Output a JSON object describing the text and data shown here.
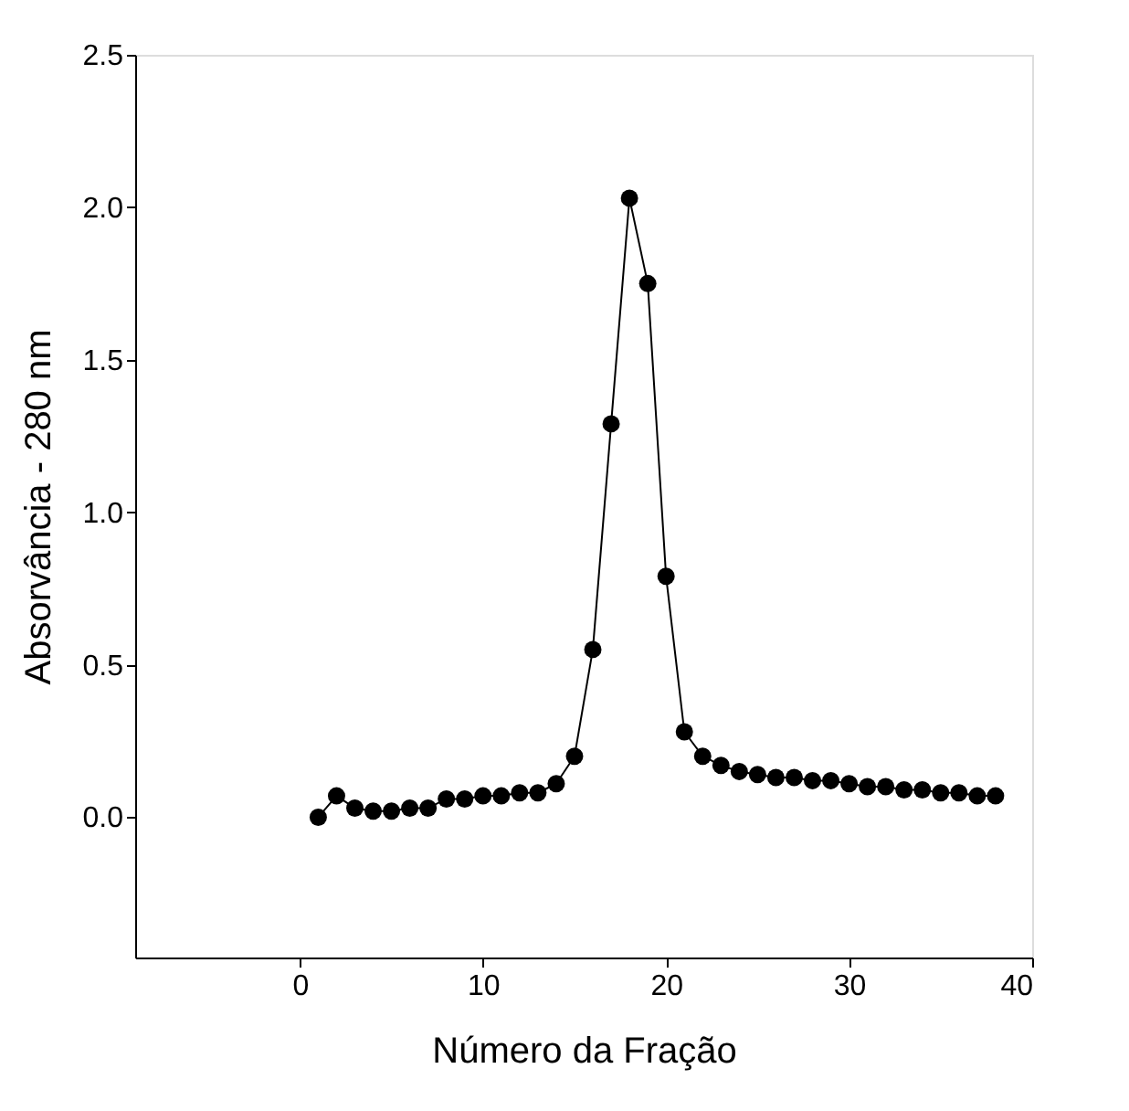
{
  "chart_data": {
    "type": "line",
    "xlabel": "Número da Fração",
    "ylabel": "Absorvância - 280 nm",
    "x": [
      1,
      2,
      3,
      4,
      5,
      6,
      7,
      8,
      9,
      10,
      11,
      12,
      13,
      14,
      15,
      16,
      17,
      18,
      19,
      20,
      21,
      22,
      23,
      24,
      25,
      26,
      27,
      28,
      29,
      30,
      31,
      32,
      33,
      34,
      35,
      36,
      37,
      38
    ],
    "series": [
      {
        "color": "#000000",
        "values": [
          0.0,
          0.07,
          0.03,
          0.02,
          0.02,
          0.03,
          0.03,
          0.06,
          0.06,
          0.07,
          0.07,
          0.08,
          0.08,
          0.11,
          0.2,
          0.55,
          1.29,
          2.03,
          1.75,
          0.79,
          0.28,
          0.2,
          0.17,
          0.15,
          0.14,
          0.13,
          0.13,
          0.12,
          0.12,
          0.11,
          0.1,
          0.1,
          0.09,
          0.09,
          0.08,
          0.08,
          0.07,
          0.07
        ]
      }
    ],
    "xlim": [
      -9,
      40
    ],
    "xticks": [
      0,
      10,
      20,
      30,
      40
    ],
    "ylim": [
      -0.46,
      2.5
    ],
    "yticks": [
      {
        "value": 0,
        "label": "0.0"
      },
      {
        "value": 0.5,
        "label": "0.5"
      },
      {
        "value": 1,
        "label": "1.0"
      },
      {
        "value": 1.5,
        "label": "1.5"
      },
      {
        "value": 2,
        "label": "2.0"
      },
      {
        "value": 2.5,
        "label": "2.5"
      }
    ],
    "marker": "circle",
    "line_style": "solid",
    "grid": false
  }
}
